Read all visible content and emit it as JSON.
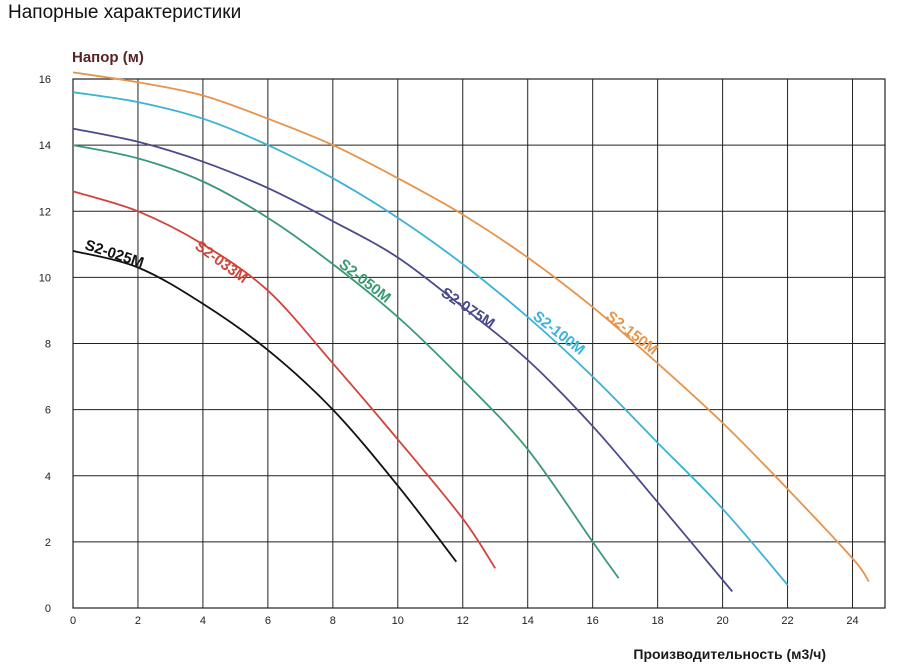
{
  "page_title": "Напорные характеристики",
  "chart_data": {
    "type": "line",
    "ylabel": "Напор (м)",
    "xlabel": "Производительность (м3/ч)",
    "xlim": [
      0,
      25
    ],
    "ylim": [
      0,
      16
    ],
    "x_ticks": [
      "0",
      "2",
      "4",
      "6",
      "8",
      "10",
      "12",
      "14",
      "16",
      "18",
      "20",
      "22",
      "24"
    ],
    "y_ticks": [
      "0",
      "2",
      "4",
      "6",
      "8",
      "10",
      "12",
      "14",
      "16"
    ],
    "grid": true,
    "series": [
      {
        "name": "S2-025M",
        "color": "#111111",
        "points": [
          [
            0,
            10.8
          ],
          [
            2,
            10.3
          ],
          [
            4,
            9.2
          ],
          [
            6,
            7.8
          ],
          [
            8,
            6.0
          ],
          [
            10,
            3.7
          ],
          [
            11.8,
            1.4
          ]
        ]
      },
      {
        "name": "S2-033M",
        "color": "#d2443a",
        "points": [
          [
            0,
            12.6
          ],
          [
            2,
            12.0
          ],
          [
            4,
            11.0
          ],
          [
            6,
            9.6
          ],
          [
            8,
            7.4
          ],
          [
            10,
            5.1
          ],
          [
            12,
            2.7
          ],
          [
            13,
            1.2
          ]
        ]
      },
      {
        "name": "S2-050M",
        "color": "#3a9a72",
        "points": [
          [
            0,
            14.0
          ],
          [
            2,
            13.6
          ],
          [
            4,
            12.9
          ],
          [
            6,
            11.8
          ],
          [
            8,
            10.4
          ],
          [
            10,
            8.8
          ],
          [
            12,
            6.9
          ],
          [
            14,
            4.8
          ],
          [
            16,
            2.0
          ],
          [
            16.8,
            0.9
          ]
        ]
      },
      {
        "name": "S2-075M",
        "color": "#4b4a8c",
        "points": [
          [
            0,
            14.5
          ],
          [
            2,
            14.1
          ],
          [
            4,
            13.5
          ],
          [
            6,
            12.7
          ],
          [
            8,
            11.7
          ],
          [
            10,
            10.6
          ],
          [
            12,
            9.1
          ],
          [
            14,
            7.5
          ],
          [
            16,
            5.5
          ],
          [
            18,
            3.2
          ],
          [
            20.3,
            0.5
          ]
        ]
      },
      {
        "name": "S2-100M",
        "color": "#3bb2d8",
        "points": [
          [
            0,
            15.6
          ],
          [
            2,
            15.3
          ],
          [
            4,
            14.8
          ],
          [
            6,
            14.0
          ],
          [
            8,
            13.0
          ],
          [
            10,
            11.8
          ],
          [
            12,
            10.4
          ],
          [
            14,
            8.8
          ],
          [
            16,
            7.0
          ],
          [
            18,
            5.0
          ],
          [
            20,
            3.0
          ],
          [
            22,
            0.7
          ]
        ]
      },
      {
        "name": "S2-150M",
        "color": "#e8934a",
        "points": [
          [
            0,
            16.2
          ],
          [
            2,
            15.9
          ],
          [
            4,
            15.5
          ],
          [
            6,
            14.8
          ],
          [
            8,
            14.0
          ],
          [
            10,
            13.0
          ],
          [
            12,
            11.9
          ],
          [
            14,
            10.6
          ],
          [
            16,
            9.1
          ],
          [
            18,
            7.4
          ],
          [
            20,
            5.6
          ],
          [
            22,
            3.6
          ],
          [
            24,
            1.5
          ],
          [
            24.5,
            0.8
          ]
        ]
      }
    ]
  }
}
